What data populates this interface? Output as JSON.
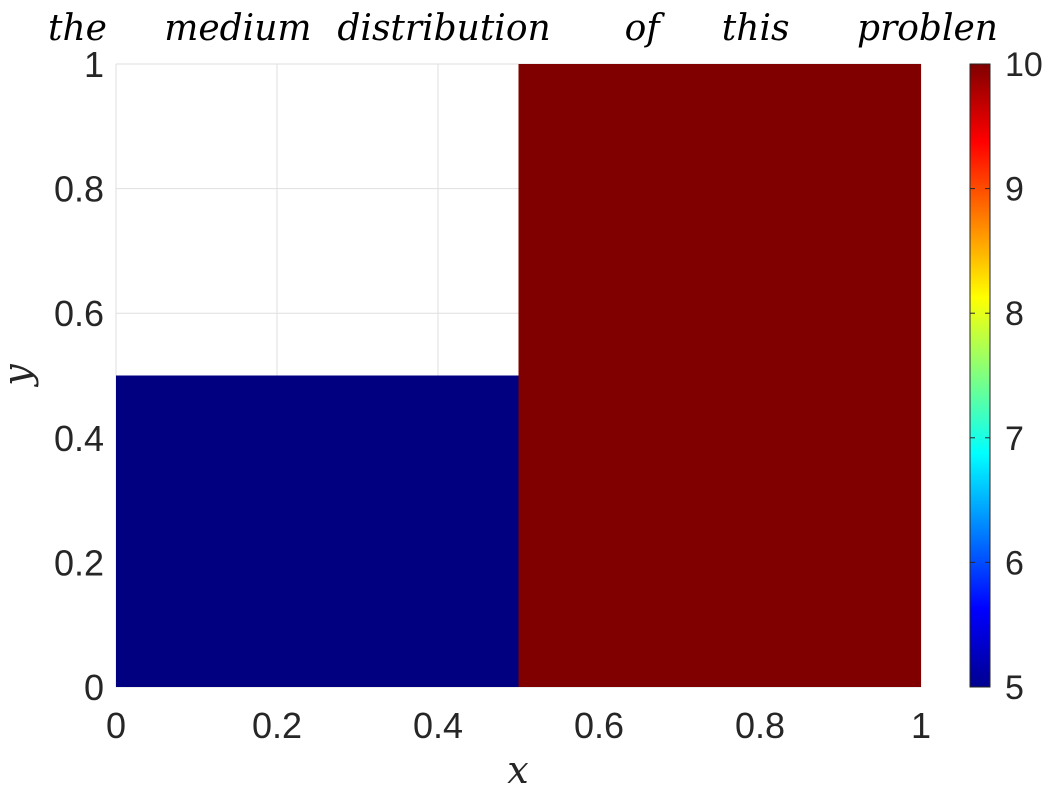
{
  "chart_data": {
    "type": "heatmap",
    "title_words": [
      "the",
      "medium",
      "distribution",
      "of",
      "this",
      "problen"
    ],
    "xlabel": "x",
    "ylabel": "y",
    "xlim": [
      0,
      1
    ],
    "ylim": [
      0,
      1
    ],
    "xticks": [
      "0",
      "0.2",
      "0.4",
      "0.6",
      "0.8",
      "1"
    ],
    "yticks": [
      "0",
      "0.2",
      "0.4",
      "0.6",
      "0.8",
      "1"
    ],
    "grid": true,
    "colormap": "jet",
    "clim": [
      5,
      10
    ],
    "colorbar_ticks": [
      "5",
      "6",
      "7",
      "8",
      "9",
      "10"
    ],
    "regions": [
      {
        "x": [
          0,
          0.5
        ],
        "y": [
          0,
          0.5
        ],
        "value": 5,
        "color": "#000080"
      },
      {
        "x": [
          0.5,
          1
        ],
        "y": [
          0,
          1
        ],
        "value": 10,
        "color": "#800000"
      }
    ],
    "empty_color": "#ffffff"
  }
}
